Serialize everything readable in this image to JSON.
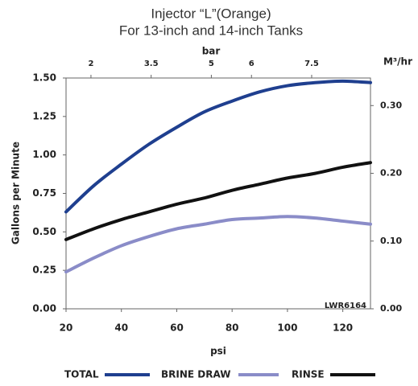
{
  "chart_data": {
    "type": "line",
    "title": "Injector “L”(Orange)",
    "subtitle": "For 13-inch and 14-inch Tanks",
    "x_label": "psi",
    "y_label": "Gallons per Minute",
    "x2_label": "bar",
    "y2_label": "M³/hr",
    "annotation": "LWR6164",
    "x": [
      20,
      30,
      40,
      50,
      60,
      70,
      80,
      90,
      100,
      110,
      120,
      130
    ],
    "series": [
      {
        "name": "TOTAL",
        "color": "#1f3f8f",
        "values": [
          0.63,
          0.8,
          0.94,
          1.07,
          1.18,
          1.28,
          1.35,
          1.41,
          1.45,
          1.47,
          1.48,
          1.47
        ]
      },
      {
        "name": "BRINE DRAW",
        "color": "#8a8cc8",
        "values": [
          0.24,
          0.33,
          0.41,
          0.47,
          0.52,
          0.55,
          0.58,
          0.59,
          0.6,
          0.59,
          0.57,
          0.55
        ]
      },
      {
        "name": "RINSE",
        "color": "#111111",
        "values": [
          0.45,
          0.52,
          0.58,
          0.63,
          0.68,
          0.72,
          0.77,
          0.81,
          0.85,
          0.88,
          0.92,
          0.95
        ]
      }
    ],
    "xlim": [
      20,
      130
    ],
    "xticks": [
      20,
      40,
      60,
      80,
      100,
      120
    ],
    "ylim": [
      0,
      1.5
    ],
    "yticks": [
      {
        "value": 0,
        "label": "0.00"
      },
      0.25,
      {
        "value": 0.5,
        "label": "0.50"
      },
      0.75,
      {
        "value": 1,
        "label": "1.00"
      },
      1.25,
      {
        "value": 1.5,
        "label": "1.50"
      }
    ],
    "x2lim": [
      1.379,
      8.966
    ],
    "x2ticks": [
      2,
      3.5,
      5,
      6,
      7.5
    ],
    "y2lim": [
      0,
      0.3407
    ],
    "y2ticks": [
      {
        "value": 0,
        "label": "0.00"
      },
      {
        "value": 0.1,
        "label": "0.10"
      },
      {
        "value": 0.2,
        "label": "0.20"
      },
      {
        "value": 0.3,
        "label": "0.30"
      }
    ],
    "grid": false
  }
}
